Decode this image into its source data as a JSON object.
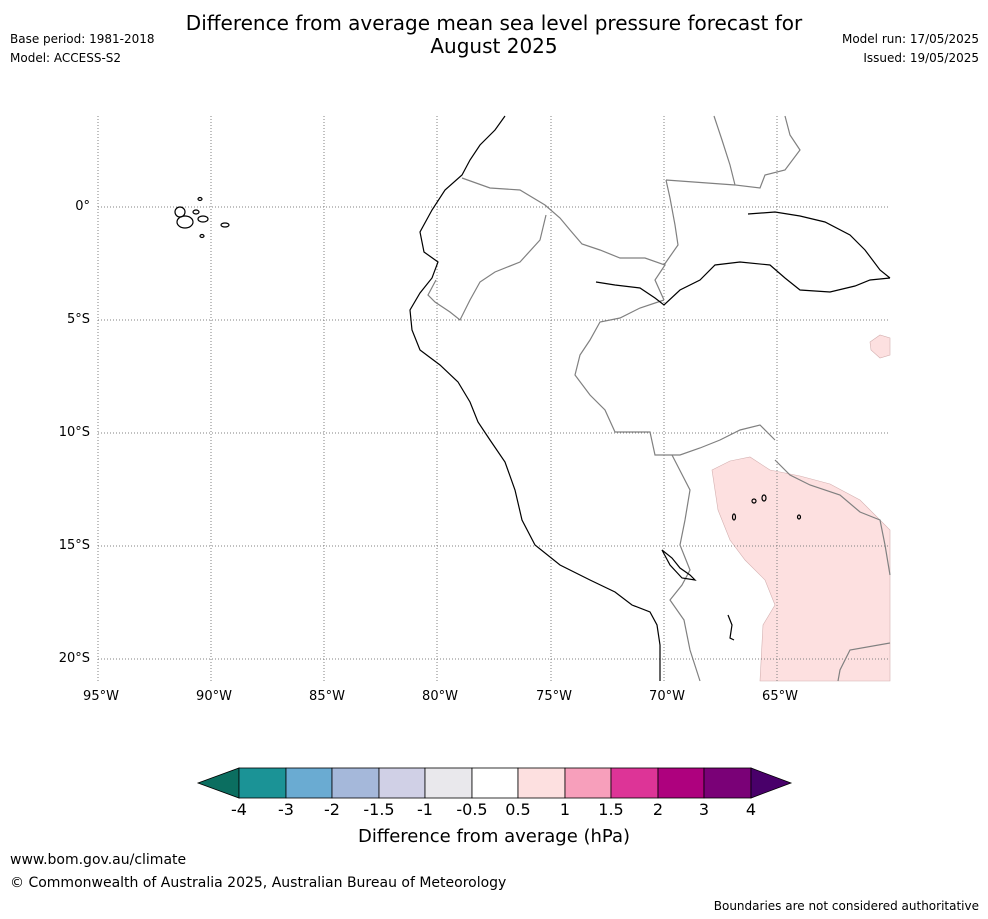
{
  "header": {
    "title_line1": "Difference from average mean sea level pressure forecast for",
    "title_line2": "August 2025",
    "base_period": "Base period: 1981-2018",
    "model": "Model: ACCESS-S2",
    "model_run": "Model run: 17/05/2025",
    "issued": "Issued: 19/05/2025"
  },
  "map": {
    "latitude_labels": [
      "0°",
      "5°S",
      "10°S",
      "15°S",
      "20°S"
    ],
    "longitude_labels": [
      "95°W",
      "90°W",
      "85°W",
      "80°W",
      "75°W",
      "70°W",
      "65°W"
    ],
    "anomaly_fill_color": "#fde0e0",
    "coastline_color": "#000000",
    "border_color": "#808080",
    "gridline_style": "dotted"
  },
  "colorbar": {
    "tick_labels": [
      "-4",
      "-3",
      "-2",
      "-1.5",
      "-1",
      "-0.5",
      "0.5",
      "1",
      "1.5",
      "2",
      "3",
      "4"
    ],
    "colors": [
      "#0b6e60",
      "#1b9396",
      "#6aabd2",
      "#a5b8da",
      "#d0d0e6",
      "#e9e8ec",
      "#ffffff",
      "#fde0e0",
      "#f79fbb",
      "#dd3497",
      "#ae017e",
      "#7a0177",
      "#49006a"
    ],
    "label": "Difference from average (hPa)"
  },
  "footer": {
    "url": "www.bom.gov.au/climate",
    "copyright": "© Commonwealth of Australia 2025, Australian Bureau of Meteorology",
    "disclaimer": "Boundaries are not considered authoritative"
  }
}
